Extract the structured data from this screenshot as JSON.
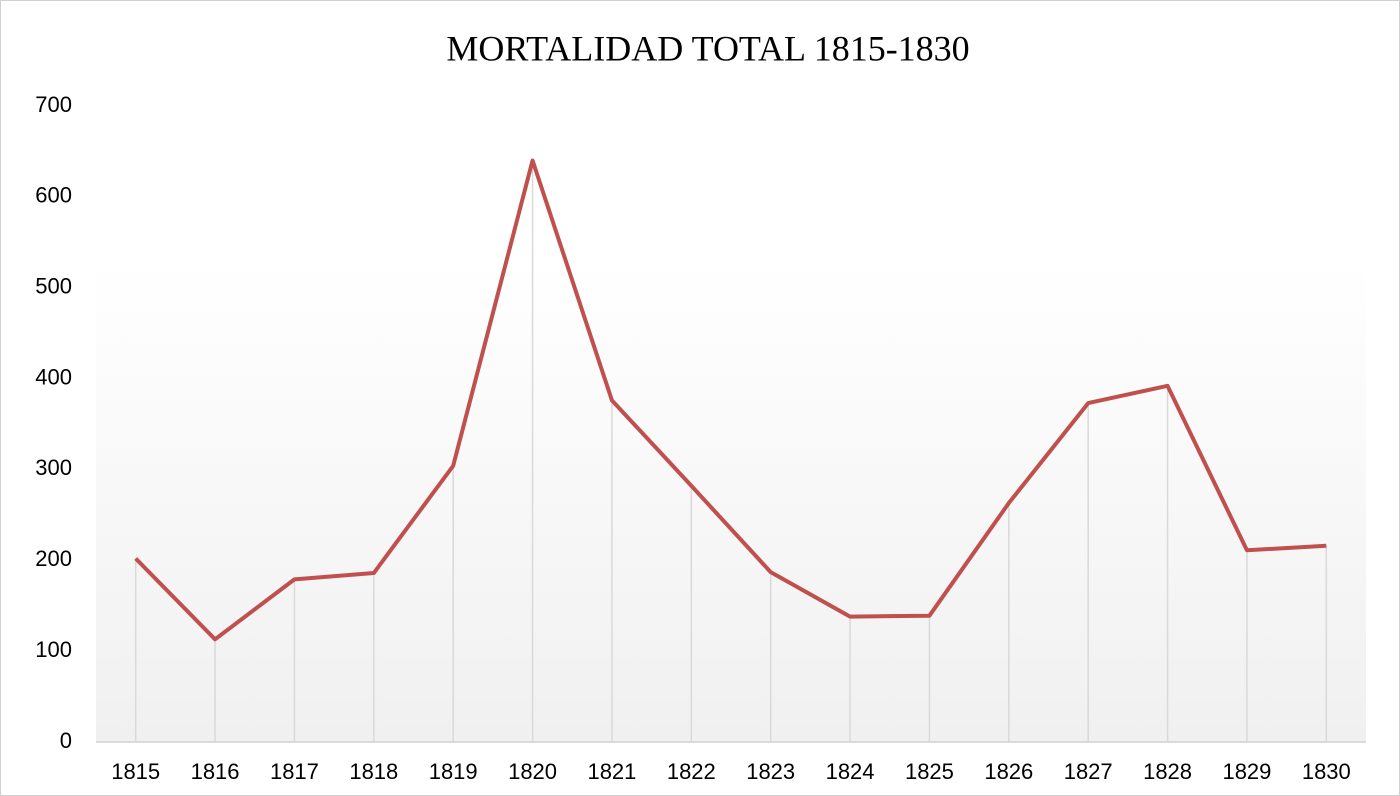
{
  "chart_data": {
    "type": "line",
    "title": "MORTALIDAD TOTAL 1815-1830",
    "categories": [
      "1815",
      "1816",
      "1817",
      "1818",
      "1819",
      "1820",
      "1821",
      "1822",
      "1823",
      "1824",
      "1825",
      "1826",
      "1827",
      "1828",
      "1829",
      "1830"
    ],
    "values": [
      202,
      113,
      179,
      186,
      304,
      640,
      376,
      282,
      187,
      138,
      139,
      263,
      373,
      392,
      211,
      216
    ],
    "color": "#c0504d",
    "drop_lines": true,
    "ylim": [
      0,
      700
    ],
    "yticks": [
      0,
      100,
      200,
      300,
      400,
      500,
      600,
      700
    ],
    "grid": false
  }
}
